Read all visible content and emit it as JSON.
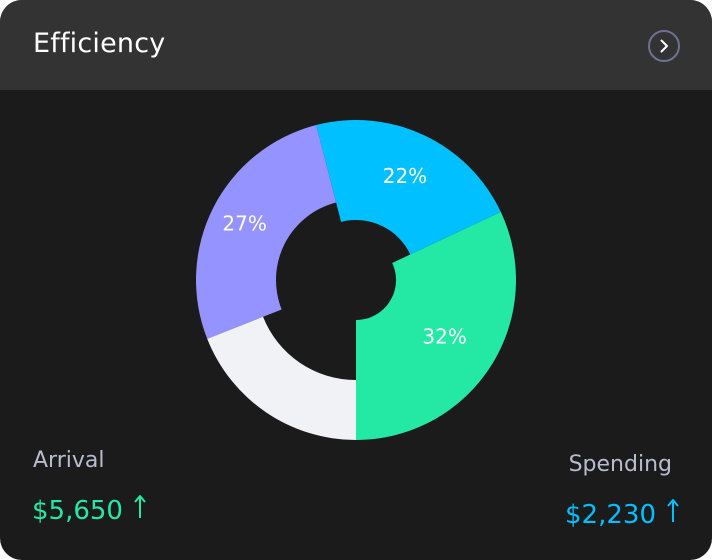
{
  "header": {
    "title": "Efficiency",
    "nav_icon": "chevron-right-icon"
  },
  "chart_data": {
    "type": "pie",
    "variant": "donut",
    "slices": [
      {
        "label": "32%",
        "value": 32,
        "color": "#23e9a5"
      },
      {
        "label": "22%",
        "value": 22,
        "color": "#00c0ff"
      },
      {
        "label": "27%",
        "value": 27,
        "color": "#9593ff"
      },
      {
        "label": "",
        "value": 19,
        "color": "#f1f2f6"
      }
    ]
  },
  "stats": {
    "arrival": {
      "label": "Arrival",
      "value": "$5,650",
      "color": "#23e9a5",
      "trend_icon": "arrow-up-icon"
    },
    "spending": {
      "label": "Spending",
      "value": "$2,230",
      "color": "#00c0ff",
      "trend_icon": "arrow-up-icon"
    }
  }
}
